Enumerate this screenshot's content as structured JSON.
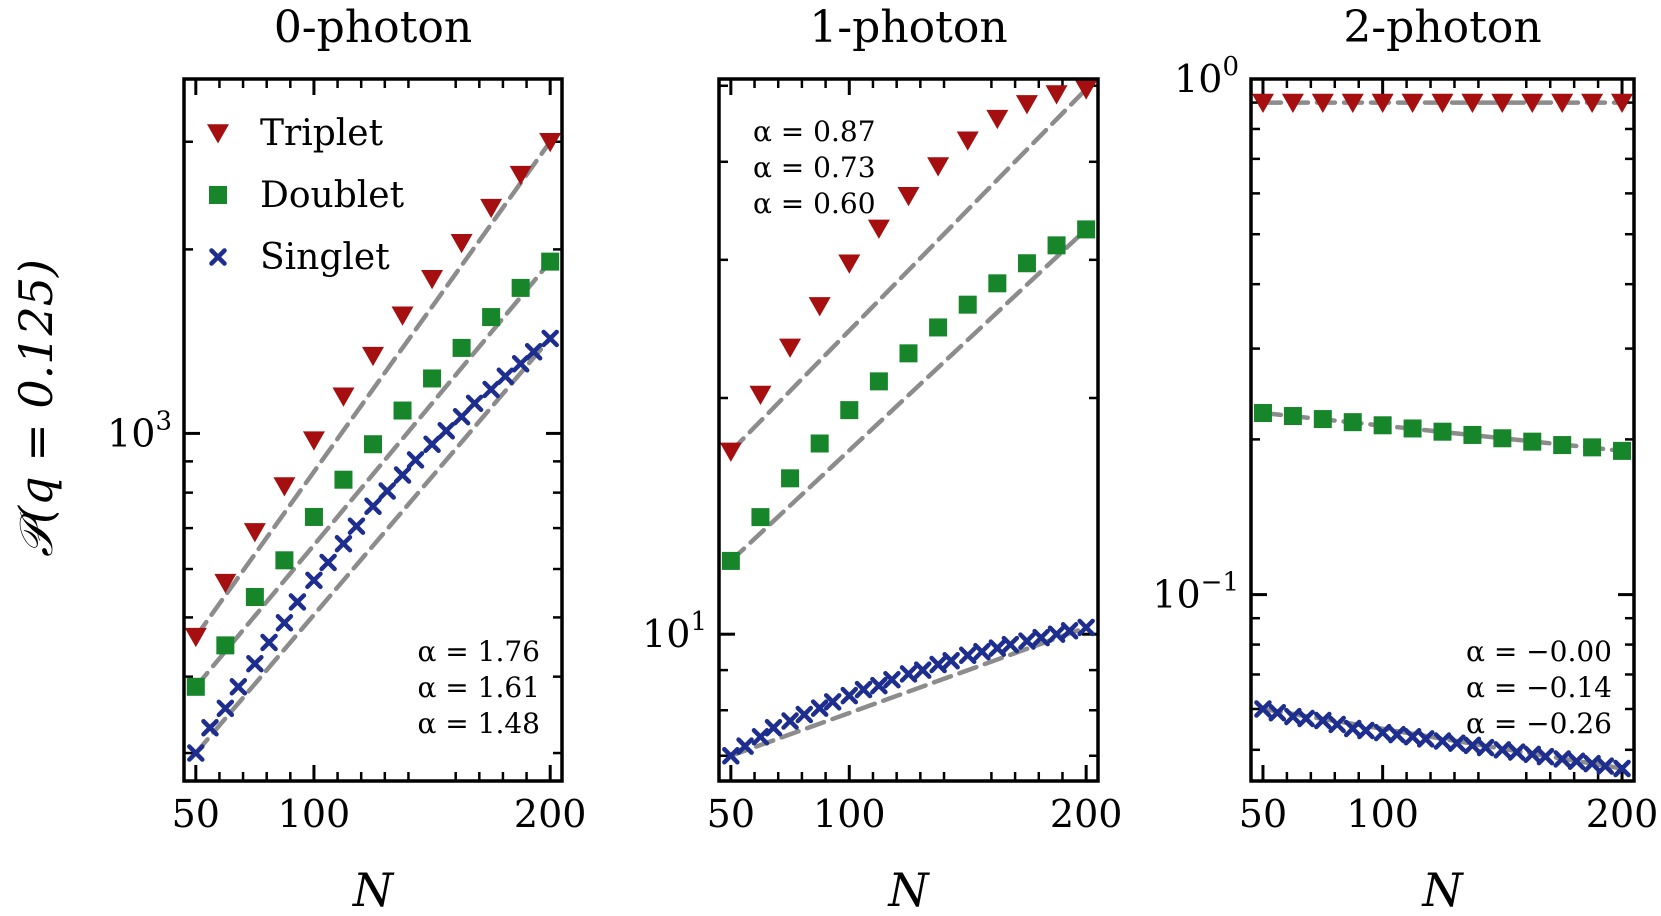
{
  "figure": {
    "ylabel": "𝒫(q = 0.125)",
    "xlabel": "N"
  },
  "colors": {
    "Triplet": "#a50f0f",
    "Doublet": "#17852a",
    "Singlet": "#1d2e8e",
    "fit": "#8c8c8c"
  },
  "legend": [
    {
      "label": "Triplet",
      "marker": "triangle-down"
    },
    {
      "label": "Doublet",
      "marker": "square"
    },
    {
      "label": "Singlet",
      "marker": "x"
    }
  ],
  "chart_data": [
    {
      "type": "scatter",
      "title": "0-photon",
      "xlabel": "N",
      "ylabel": "𝒫(q = 0.125)",
      "xscale": "linear",
      "yscale": "log",
      "xlim": [
        45,
        205
      ],
      "ylim": [
        270,
        3800
      ],
      "xticks": [
        "50",
        "100",
        "200"
      ],
      "yticks": [
        {
          "value": 1000,
          "label": "10",
          "exp": "3"
        }
      ],
      "legend_position": "top-left",
      "annotations_position": "bottom-right",
      "annotations": [
        "α = 1.76",
        "α = 1.61",
        "α = 1.48"
      ],
      "series": [
        {
          "name": "Triplet",
          "x": [
            50,
            62.5,
            75,
            87.5,
            100,
            112.5,
            125,
            137.5,
            150,
            162.5,
            175,
            187.5,
            200
          ],
          "y": [
            465,
            570,
            690,
            820,
            975,
            1150,
            1340,
            1560,
            1790,
            2050,
            2340,
            2650,
            3000
          ],
          "fit": {
            "x": [
              50,
              200
            ],
            "y": [
              465,
              3000
            ]
          }
        },
        {
          "name": "Doublet",
          "x": [
            50,
            62.5,
            75,
            87.5,
            100,
            112.5,
            125,
            137.5,
            150,
            162.5,
            175,
            187.5,
            200
          ],
          "y": [
            385,
            450,
            540,
            620,
            730,
            840,
            960,
            1090,
            1230,
            1380,
            1550,
            1730,
            1910
          ],
          "fit": {
            "x": [
              50,
              200
            ],
            "y": [
              385,
              1910
            ]
          }
        },
        {
          "name": "Singlet",
          "x": [
            50,
            56,
            62.5,
            68,
            75,
            81,
            87.5,
            93,
            100,
            106,
            112.5,
            118,
            125,
            131,
            137.5,
            143,
            150,
            156,
            162.5,
            168,
            175,
            181,
            187.5,
            193,
            200
          ],
          "y": [
            300,
            330,
            355,
            385,
            420,
            455,
            490,
            530,
            575,
            615,
            660,
            705,
            760,
            805,
            855,
            905,
            960,
            1010,
            1065,
            1120,
            1180,
            1240,
            1300,
            1360,
            1430
          ],
          "fit": {
            "x": [
              50,
              200
            ],
            "y": [
              300,
              1430
            ]
          }
        }
      ]
    },
    {
      "type": "scatter",
      "title": "1-photon",
      "xlabel": "N",
      "xscale": "linear",
      "yscale": "log",
      "xlim": [
        45,
        205
      ],
      "ylim": [
        6.5,
        51
      ],
      "xticks": [
        "50",
        "100",
        "200"
      ],
      "yticks": [
        {
          "value": 10,
          "label": "10",
          "exp": "1"
        }
      ],
      "annotations_position": "top-left",
      "annotations": [
        "α = 0.87",
        "α = 0.73",
        "α = 0.60"
      ],
      "series": [
        {
          "name": "Triplet",
          "x": [
            50,
            62.5,
            75,
            87.5,
            100,
            112.5,
            125,
            137.5,
            150,
            162.5,
            175,
            187.5,
            200
          ],
          "y": [
            17.1,
            20.2,
            23.2,
            26.2,
            29.7,
            32.9,
            36.2,
            39.5,
            42.6,
            45.4,
            47.4,
            48.8,
            49.5
          ],
          "fit": {
            "x": [
              50,
              200
            ],
            "y": [
              17.1,
              49.5
            ]
          }
        },
        {
          "name": "Doublet",
          "x": [
            50,
            62.5,
            75,
            87.5,
            100,
            112.5,
            125,
            137.5,
            150,
            162.5,
            175,
            187.5,
            200
          ],
          "y": [
            12.4,
            14.1,
            15.8,
            17.5,
            19.3,
            21.0,
            22.8,
            24.6,
            26.3,
            28.0,
            29.7,
            31.3,
            32.8
          ],
          "fit": {
            "x": [
              50,
              200
            ],
            "y": [
              12.4,
              32.8
            ]
          }
        },
        {
          "name": "Singlet",
          "x": [
            50,
            56,
            62.5,
            68,
            75,
            81,
            87.5,
            93,
            100,
            106,
            112.5,
            118,
            125,
            131,
            137.5,
            143,
            150,
            156,
            162.5,
            168,
            175,
            181,
            187.5,
            193,
            200
          ],
          "y": [
            7.0,
            7.2,
            7.4,
            7.6,
            7.75,
            7.9,
            8.05,
            8.2,
            8.35,
            8.5,
            8.6,
            8.75,
            8.9,
            9.0,
            9.15,
            9.25,
            9.4,
            9.5,
            9.6,
            9.7,
            9.8,
            9.9,
            10.0,
            10.1,
            10.2
          ],
          "fit": {
            "x": [
              50,
              200
            ],
            "y": [
              7.0,
              10.2
            ]
          }
        }
      ]
    },
    {
      "type": "scatter",
      "title": "2-photon",
      "xlabel": "N",
      "xscale": "linear",
      "yscale": "log",
      "xlim": [
        45,
        205
      ],
      "ylim": [
        0.0435,
        1.0
      ],
      "xticks": [
        "50",
        "100",
        "200"
      ],
      "yticks": [
        {
          "value": 0.1,
          "label": "10",
          "exp": "−1"
        },
        {
          "value": 1.0,
          "label": "10",
          "exp": "0"
        }
      ],
      "annotations_position": "bottom-right",
      "annotations": [
        "α = −0.00",
        "α = −0.14",
        "α = −0.26"
      ],
      "series": [
        {
          "name": "Triplet",
          "x": [
            50,
            62.5,
            75,
            87.5,
            100,
            112.5,
            125,
            137.5,
            150,
            162.5,
            175,
            187.5,
            200
          ],
          "y": [
            0.9,
            0.9,
            0.9,
            0.9,
            0.9,
            0.9,
            0.9,
            0.9,
            0.9,
            0.9,
            0.9,
            0.9,
            0.9
          ],
          "fit": {
            "x": [
              50,
              200
            ],
            "y": [
              0.9,
              0.9
            ]
          }
        },
        {
          "name": "Doublet",
          "x": [
            50,
            62.5,
            75,
            87.5,
            100,
            112.5,
            125,
            137.5,
            150,
            162.5,
            175,
            187.5,
            200
          ],
          "y": [
            0.225,
            0.222,
            0.219,
            0.216,
            0.213,
            0.21,
            0.207,
            0.204,
            0.201,
            0.198,
            0.195,
            0.193,
            0.19
          ],
          "fit": {
            "x": [
              50,
              200
            ],
            "y": [
              0.225,
              0.19
            ]
          }
        },
        {
          "name": "Singlet",
          "x": [
            50,
            56,
            62.5,
            68,
            75,
            81,
            87.5,
            93,
            100,
            106,
            112.5,
            118,
            125,
            131,
            137.5,
            143,
            150,
            156,
            162.5,
            168,
            175,
            181,
            187.5,
            193,
            200
          ],
          "y": [
            0.06,
            0.059,
            0.058,
            0.0575,
            0.057,
            0.056,
            0.055,
            0.0545,
            0.054,
            0.0535,
            0.053,
            0.0525,
            0.052,
            0.0515,
            0.051,
            0.0505,
            0.05,
            0.0495,
            0.049,
            0.0485,
            0.048,
            0.0475,
            0.047,
            0.0465,
            0.046
          ],
          "fit": {
            "x": [
              50,
              200
            ],
            "y": [
              0.06,
              0.046
            ]
          }
        }
      ]
    }
  ]
}
